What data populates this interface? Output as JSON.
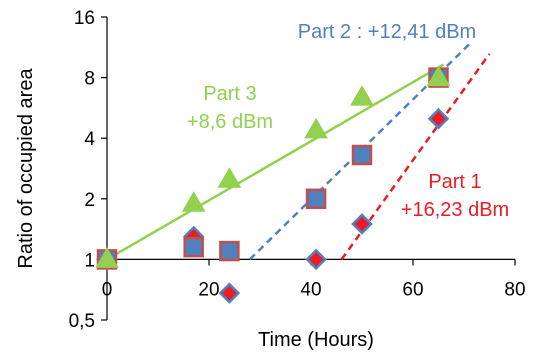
{
  "chart_data": {
    "type": "scatter",
    "title": "",
    "xlabel": "Time (Hours)",
    "ylabel": "Ratio of occupied area",
    "xlim": [
      0,
      80
    ],
    "ylim": [
      0.5,
      16
    ],
    "yscale": "log2",
    "xticks": [
      "0",
      "20",
      "40",
      "60",
      "80"
    ],
    "yticks": [
      "0,5",
      "1",
      "2",
      "4",
      "8",
      "16"
    ],
    "grid": false,
    "legend": "none",
    "series": [
      {
        "color": "#ED1C24",
        "marker": "diamond",
        "points": [
          [
            0,
            1.0
          ],
          [
            17,
            1.3
          ],
          [
            24,
            0.68
          ],
          [
            41,
            1.0
          ],
          [
            50,
            1.5
          ],
          [
            65,
            5.0
          ]
        ],
        "fit_line": {
          "style": "dashed",
          "x": [
            46,
            75
          ],
          "y": [
            1.0,
            10.5
          ]
        }
      },
      {
        "color": "#4F81BD",
        "marker": "square",
        "points": [
          [
            0,
            1.0
          ],
          [
            17,
            1.15
          ],
          [
            24,
            1.1
          ],
          [
            41,
            2.0
          ],
          [
            50,
            3.3
          ],
          [
            65,
            8.0
          ]
        ],
        "fit_line": {
          "style": "dashed",
          "x": [
            28,
            71
          ],
          "y": [
            1.0,
            11.7
          ]
        }
      },
      {
        "color": "#92D050",
        "marker": "triangle",
        "points": [
          [
            0,
            1.0
          ],
          [
            17,
            1.9
          ],
          [
            24,
            2.5
          ],
          [
            41,
            4.4
          ],
          [
            50,
            6.4
          ],
          [
            65,
            8.0
          ]
        ],
        "fit_line": {
          "style": "solid",
          "x": [
            0,
            66
          ],
          "y": [
            1.0,
            9.3
          ]
        }
      }
    ],
    "annotations": [
      {
        "lines": [
          "Part 2 : +12,41 dBm"
        ],
        "color": "#4F81BD"
      },
      {
        "lines": [
          "Part 3",
          "+8,6 dBm"
        ],
        "color": "#92D050"
      },
      {
        "lines": [
          "Part 1",
          "+16,23 dBm"
        ],
        "color": "#ED1C24"
      }
    ]
  }
}
